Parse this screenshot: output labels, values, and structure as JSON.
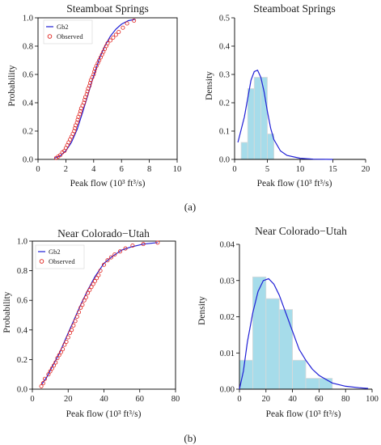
{
  "panel_labels": [
    "(a)",
    "(b)"
  ],
  "chart_data": [
    {
      "type": "scatter",
      "title": "Steamboat Springs",
      "xlabel": "Peak flow (10³ ft³/s)",
      "ylabel": "Probability",
      "xlim": [
        0,
        10
      ],
      "ylim": [
        0,
        1
      ],
      "x_ticks": [
        0,
        2,
        4,
        6,
        8,
        10
      ],
      "y_ticks": [
        0.0,
        0.2,
        0.4,
        0.6,
        0.8,
        1.0
      ],
      "legend": [
        "Gb2",
        "Observed"
      ],
      "legend_position": "top-left",
      "series": [
        {
          "name": "Gb2",
          "kind": "line",
          "color": "#1f1fd6",
          "x": [
            1.2,
            1.6,
            2.0,
            2.4,
            2.8,
            3.2,
            3.6,
            4.0,
            4.4,
            4.8,
            5.2,
            5.6,
            6.0,
            6.5,
            7.0
          ],
          "y": [
            0.01,
            0.025,
            0.06,
            0.12,
            0.21,
            0.33,
            0.46,
            0.59,
            0.71,
            0.8,
            0.87,
            0.92,
            0.955,
            0.98,
            0.99
          ]
        },
        {
          "name": "Observed",
          "kind": "points",
          "color": "#e0201b",
          "x": [
            1.3,
            1.45,
            1.6,
            1.75,
            1.9,
            2.0,
            2.1,
            2.2,
            2.3,
            2.4,
            2.5,
            2.6,
            2.65,
            2.7,
            2.8,
            2.85,
            2.9,
            3.0,
            3.05,
            3.1,
            3.2,
            3.3,
            3.35,
            3.4,
            3.5,
            3.55,
            3.6,
            3.7,
            3.75,
            3.8,
            3.9,
            4.0,
            4.05,
            4.1,
            4.2,
            4.3,
            4.4,
            4.5,
            4.6,
            4.7,
            4.8,
            4.9,
            5.0,
            5.2,
            5.4,
            5.6,
            5.8,
            6.1,
            6.4,
            6.9
          ],
          "y": [
            0.01,
            0.02,
            0.03,
            0.05,
            0.06,
            0.08,
            0.1,
            0.12,
            0.14,
            0.16,
            0.18,
            0.2,
            0.22,
            0.24,
            0.26,
            0.28,
            0.3,
            0.32,
            0.34,
            0.36,
            0.38,
            0.4,
            0.42,
            0.44,
            0.46,
            0.48,
            0.5,
            0.52,
            0.54,
            0.56,
            0.58,
            0.6,
            0.62,
            0.64,
            0.66,
            0.68,
            0.7,
            0.72,
            0.74,
            0.76,
            0.78,
            0.8,
            0.82,
            0.84,
            0.86,
            0.88,
            0.9,
            0.93,
            0.96,
            0.98
          ]
        }
      ]
    },
    {
      "type": "bar",
      "title": "Steamboat Springs",
      "xlabel": "Peak flow (10³ ft³/s)",
      "ylabel": "Density",
      "xlim": [
        0,
        20
      ],
      "ylim": [
        0,
        0.5
      ],
      "x_ticks": [
        0,
        5,
        10,
        15,
        20
      ],
      "y_ticks": [
        0.0,
        0.1,
        0.2,
        0.3,
        0.4,
        0.5
      ],
      "bins": [
        {
          "x0": 1,
          "x1": 2,
          "value": 0.06
        },
        {
          "x0": 2,
          "x1": 3,
          "value": 0.25
        },
        {
          "x0": 3,
          "x1": 4,
          "value": 0.29
        },
        {
          "x0": 4,
          "x1": 5,
          "value": 0.29
        },
        {
          "x0": 5,
          "x1": 6,
          "value": 0.09
        }
      ],
      "curve": {
        "name": "Gb2",
        "color": "#1f1fd6",
        "x": [
          0.5,
          1.5,
          2.5,
          3.0,
          3.5,
          4.0,
          4.5,
          5.0,
          5.5,
          6.0,
          7.0,
          8.0,
          10.0,
          12.0,
          15.0
        ],
        "y": [
          0.06,
          0.15,
          0.28,
          0.31,
          0.315,
          0.29,
          0.24,
          0.17,
          0.11,
          0.07,
          0.03,
          0.014,
          0.004,
          0.001,
          0.0
        ]
      },
      "bar_color": "#a6dcea"
    },
    {
      "type": "scatter",
      "title": "Near Colorado−Utah",
      "xlabel": "Peak flow (10³ ft³/s)",
      "ylabel": "Probability",
      "xlim": [
        0,
        80
      ],
      "ylim": [
        0,
        1
      ],
      "x_ticks": [
        0,
        20,
        40,
        60,
        80
      ],
      "y_ticks": [
        0.0,
        0.2,
        0.4,
        0.6,
        0.8,
        1.0
      ],
      "legend": [
        "Gb2",
        "Observed"
      ],
      "legend_position": "top-left",
      "series": [
        {
          "name": "Gb2",
          "kind": "line",
          "color": "#1f1fd6",
          "x": [
            5,
            8,
            11,
            15,
            19,
            23,
            27,
            31,
            35,
            40,
            45,
            50,
            55,
            62,
            70
          ],
          "y": [
            0.03,
            0.08,
            0.15,
            0.24,
            0.35,
            0.46,
            0.57,
            0.67,
            0.76,
            0.85,
            0.9,
            0.94,
            0.96,
            0.98,
            0.99
          ]
        },
        {
          "name": "Observed",
          "kind": "points",
          "color": "#e0201b",
          "x": [
            5,
            6,
            7,
            9,
            10,
            11,
            12,
            13,
            14,
            15,
            16,
            17,
            18,
            19,
            20,
            21,
            22,
            23,
            24,
            25,
            26,
            27,
            28,
            29,
            30,
            31,
            32,
            33,
            34,
            35,
            36,
            37,
            38,
            40,
            42,
            44,
            46,
            49,
            52,
            56,
            62,
            70
          ],
          "y": [
            0.02,
            0.04,
            0.07,
            0.1,
            0.12,
            0.14,
            0.16,
            0.18,
            0.21,
            0.23,
            0.25,
            0.27,
            0.3,
            0.32,
            0.35,
            0.38,
            0.4,
            0.43,
            0.46,
            0.49,
            0.52,
            0.55,
            0.57,
            0.6,
            0.62,
            0.65,
            0.67,
            0.69,
            0.71,
            0.73,
            0.75,
            0.77,
            0.8,
            0.84,
            0.87,
            0.89,
            0.91,
            0.93,
            0.95,
            0.97,
            0.98,
            0.99
          ]
        }
      ]
    },
    {
      "type": "bar",
      "title": "Near Colorado−Utah",
      "xlabel": "Peak flow (10³ ft³/s)",
      "ylabel": "Density",
      "xlim": [
        0,
        100
      ],
      "ylim": [
        0,
        0.04
      ],
      "x_ticks": [
        0,
        20,
        40,
        60,
        80,
        100
      ],
      "y_ticks": [
        0.0,
        0.01,
        0.02,
        0.03,
        0.04
      ],
      "bins": [
        {
          "x0": 0,
          "x1": 10,
          "value": 0.008
        },
        {
          "x0": 10,
          "x1": 20,
          "value": 0.031
        },
        {
          "x0": 20,
          "x1": 30,
          "value": 0.025
        },
        {
          "x0": 30,
          "x1": 40,
          "value": 0.022
        },
        {
          "x0": 40,
          "x1": 50,
          "value": 0.008
        },
        {
          "x0": 50,
          "x1": 60,
          "value": 0.003
        },
        {
          "x0": 60,
          "x1": 70,
          "value": 0.003
        }
      ],
      "curve": {
        "name": "Gb2",
        "color": "#1f1fd6",
        "x": [
          0,
          3,
          6,
          10,
          14,
          18,
          22,
          26,
          30,
          35,
          40,
          45,
          50,
          55,
          60,
          70,
          80,
          90,
          97
        ],
        "y": [
          0.0,
          0.005,
          0.013,
          0.021,
          0.027,
          0.03,
          0.0305,
          0.029,
          0.026,
          0.021,
          0.016,
          0.011,
          0.008,
          0.0055,
          0.0038,
          0.0017,
          0.0008,
          0.0004,
          0.0002
        ]
      },
      "bar_color": "#a6dcea"
    }
  ]
}
